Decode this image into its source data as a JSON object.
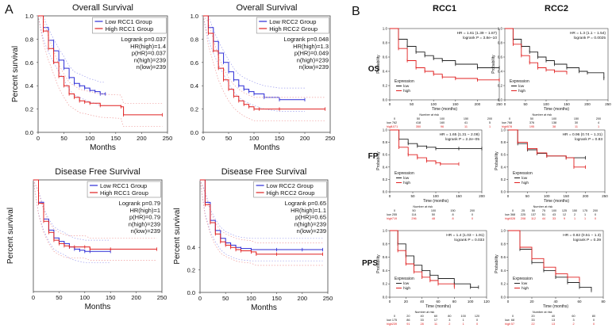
{
  "panel_labels": [
    "A",
    "B"
  ],
  "colors": {
    "low": "#2b2bd6",
    "high": "#e02020",
    "km_low": "#222222",
    "km_high": "#e02020",
    "ci_low": "#9d9dee",
    "ci_high": "#ef9d9d"
  },
  "chart_data": [
    {
      "type": "line",
      "panel": "A",
      "title": "Overall Survival",
      "xlabel": "Months",
      "ylabel": "Percent survival",
      "xlim": [
        0,
        250
      ],
      "ylim": [
        0,
        1.0
      ],
      "xticks": [
        "0",
        "50",
        "100",
        "150",
        "200",
        "250"
      ],
      "yticks": [
        "0.0",
        "0.2",
        "0.4",
        "0.6",
        "0.8",
        "1.0"
      ],
      "legend": [
        "Low RCC1 Group",
        "High RCC1 Group"
      ],
      "stats": [
        "Logrank p=0.037",
        "HR(high)=1.4",
        "p(HR)=0.037",
        "n(high)=239",
        "n(low)=239"
      ],
      "series": [
        {
          "name": "Low RCC1 Group",
          "x": [
            0,
            10,
            20,
            30,
            40,
            50,
            60,
            70,
            80,
            90,
            100,
            110,
            120,
            130
          ],
          "y": [
            1.0,
            0.9,
            0.79,
            0.7,
            0.62,
            0.55,
            0.47,
            0.42,
            0.4,
            0.38,
            0.36,
            0.35,
            0.33,
            0.33
          ]
        },
        {
          "name": "High RCC1 Group",
          "x": [
            0,
            10,
            20,
            30,
            40,
            50,
            60,
            70,
            80,
            90,
            100,
            120,
            160,
            165,
            240
          ],
          "y": [
            1.0,
            0.87,
            0.72,
            0.6,
            0.48,
            0.4,
            0.33,
            0.3,
            0.27,
            0.26,
            0.25,
            0.23,
            0.22,
            0.15,
            0.15
          ]
        }
      ]
    },
    {
      "type": "line",
      "panel": "A",
      "title": "Overall Survival",
      "xlabel": "Months",
      "ylabel": "",
      "xlim": [
        0,
        250
      ],
      "ylim": [
        0,
        1.0
      ],
      "xticks": [
        "0",
        "50",
        "100",
        "150",
        "200",
        "250"
      ],
      "yticks": [
        "0.0",
        "0.2",
        "0.4",
        "0.6",
        "0.8",
        "1.0"
      ],
      "legend": [
        "Low RCC2 Group",
        "High RCC2 Group"
      ],
      "stats": [
        "Logrank p=0.048",
        "HR(high)=1.3",
        "p(HR)=0.049",
        "n(high)=239",
        "n(low)=239"
      ],
      "series": [
        {
          "name": "Low RCC2 Group",
          "x": [
            0,
            10,
            20,
            30,
            40,
            50,
            60,
            70,
            80,
            90,
            100,
            120,
            150,
            200
          ],
          "y": [
            1.0,
            0.9,
            0.78,
            0.68,
            0.6,
            0.52,
            0.45,
            0.4,
            0.37,
            0.35,
            0.33,
            0.3,
            0.28,
            0.28
          ]
        },
        {
          "name": "High RCC2 Group",
          "x": [
            0,
            10,
            20,
            30,
            40,
            50,
            60,
            70,
            80,
            90,
            100,
            110,
            150,
            240
          ],
          "y": [
            1.0,
            0.85,
            0.7,
            0.55,
            0.45,
            0.37,
            0.31,
            0.27,
            0.24,
            0.22,
            0.2,
            0.2,
            0.2,
            0.2
          ]
        }
      ]
    },
    {
      "type": "line",
      "panel": "A",
      "title": "Disease Free Survival",
      "xlabel": "Months",
      "ylabel": "Percent survival",
      "xlim": [
        0,
        250
      ],
      "ylim": [
        0,
        1.0
      ],
      "xticks": [
        "0",
        "50",
        "100",
        "150",
        "200",
        "250"
      ],
      "yticks": [],
      "legend": [
        "Low RCC1 Group",
        "High RCC1 Group"
      ],
      "stats": [
        "Logrank p=0.79",
        "HR(high)=1",
        "p(HR)=0.79",
        "n(high)=239",
        "n(low)=239"
      ],
      "series": [
        {
          "name": "Low RCC1 Group",
          "x": [
            0,
            10,
            20,
            30,
            40,
            50,
            60,
            70,
            80,
            90,
            100,
            110,
            150
          ],
          "y": [
            1.0,
            0.8,
            0.65,
            0.55,
            0.48,
            0.45,
            0.43,
            0.4,
            0.38,
            0.37,
            0.36,
            0.36,
            0.36
          ]
        },
        {
          "name": "High RCC1 Group",
          "x": [
            0,
            10,
            20,
            30,
            40,
            50,
            60,
            70,
            80,
            100,
            110,
            150,
            240
          ],
          "y": [
            1.0,
            0.79,
            0.63,
            0.53,
            0.46,
            0.43,
            0.41,
            0.4,
            0.4,
            0.4,
            0.38,
            0.38,
            0.38
          ]
        }
      ]
    },
    {
      "type": "line",
      "panel": "A",
      "title": "Disease Free Survival",
      "xlabel": "Months",
      "ylabel": "Percent survival",
      "xlim": [
        0,
        250
      ],
      "ylim": [
        0,
        1.0
      ],
      "xticks": [
        "0",
        "50",
        "100",
        "150",
        "200",
        "250"
      ],
      "yticks": [
        "0.0",
        "0.2",
        "0.4"
      ],
      "legend": [
        "Low RCC2 Group",
        "High RCC2 Group"
      ],
      "stats": [
        "Logrank p=0.65",
        "HR(high)=1.1",
        "p(HR)=0.65",
        "n(high)=239",
        "n(low)=239"
      ],
      "series": [
        {
          "name": "Low RCC2 Group",
          "x": [
            0,
            10,
            20,
            30,
            40,
            50,
            60,
            70,
            80,
            100,
            150,
            200,
            240
          ],
          "y": [
            1.0,
            0.8,
            0.64,
            0.55,
            0.48,
            0.44,
            0.42,
            0.4,
            0.39,
            0.38,
            0.38,
            0.38,
            0.38
          ]
        },
        {
          "name": "High RCC2 Group",
          "x": [
            0,
            10,
            20,
            30,
            40,
            50,
            60,
            70,
            80,
            100,
            110,
            150,
            240
          ],
          "y": [
            1.0,
            0.78,
            0.62,
            0.52,
            0.45,
            0.42,
            0.4,
            0.38,
            0.37,
            0.36,
            0.34,
            0.34,
            0.34
          ]
        }
      ]
    },
    {
      "type": "line",
      "panel": "B",
      "title": "RCC1",
      "row_label": "OS",
      "xlabel": "Time (months)",
      "ylabel": "Probability",
      "xlim": [
        0,
        250
      ],
      "ylim": [
        0,
        1.0
      ],
      "xticks": [
        "0",
        "50",
        "100",
        "150",
        "200",
        "250"
      ],
      "yticks": [
        "0.0",
        "0.2",
        "0.4",
        "0.6",
        "0.8",
        "1.0"
      ],
      "legend_title": "Expression",
      "legend": [
        "low",
        "high"
      ],
      "stats": [
        "HR = 1.61 (1.39 − 1.87)",
        "logrank P = 3.8e−10"
      ],
      "risk_table_title": "Number at risk",
      "risk_table": {
        "times": [
          "0",
          "50",
          "100",
          "150",
          "200"
        ],
        "low": [
          "762",
          "418",
          "160",
          "41",
          "5"
        ],
        "high": [
          "1071",
          "350",
          "96",
          "11",
          "1"
        ]
      },
      "series": [
        {
          "name": "low",
          "x": [
            0,
            20,
            40,
            60,
            80,
            100,
            120,
            150,
            200,
            250
          ],
          "y": [
            1.0,
            0.85,
            0.75,
            0.67,
            0.62,
            0.58,
            0.55,
            0.5,
            0.45,
            0.45
          ]
        },
        {
          "name": "high",
          "x": [
            0,
            20,
            40,
            60,
            80,
            100,
            120,
            150,
            200,
            250
          ],
          "y": [
            1.0,
            0.72,
            0.55,
            0.45,
            0.4,
            0.36,
            0.32,
            0.3,
            0.28,
            0.28
          ]
        }
      ]
    },
    {
      "type": "line",
      "panel": "B",
      "title": "RCC2",
      "row_label": "OS",
      "xlabel": "Time (months)",
      "ylabel": "Probability",
      "xlim": [
        0,
        250
      ],
      "ylim": [
        0,
        1.0
      ],
      "xticks": [
        "0",
        "50",
        "100",
        "150",
        "200",
        "250"
      ],
      "yticks": [
        "0.0",
        "0.2",
        "0.4",
        "0.6",
        "0.8",
        "1.0"
      ],
      "legend_title": "Expression",
      "legend": [
        "low",
        "high"
      ],
      "stats": [
        "HR = 1.3 (1.1 − 1.54)",
        "logrank P = 0.0025"
      ],
      "risk_table_title": "Number at risk",
      "risk_table": {
        "times": [
          "0",
          "50",
          "100",
          "150",
          "200"
        ],
        "low": [
          "768",
          "376",
          "138",
          "30",
          "4"
        ],
        "high": [
          "578",
          "195",
          "38",
          "11",
          "1"
        ]
      },
      "series": [
        {
          "name": "low",
          "x": [
            0,
            20,
            40,
            60,
            80,
            100,
            120,
            150,
            180,
            200,
            240
          ],
          "y": [
            1.0,
            0.85,
            0.75,
            0.67,
            0.6,
            0.55,
            0.5,
            0.45,
            0.4,
            0.38,
            0.3
          ]
        },
        {
          "name": "high",
          "x": [
            0,
            20,
            40,
            60,
            80,
            100,
            120,
            150
          ],
          "y": [
            1.0,
            0.78,
            0.62,
            0.52,
            0.45,
            0.42,
            0.4,
            0.38
          ]
        }
      ]
    },
    {
      "type": "line",
      "panel": "B",
      "title": "",
      "row_label": "FP",
      "xlabel": "Time (months)",
      "ylabel": "Probability",
      "xlim": [
        0,
        200
      ],
      "ylim": [
        0,
        1.0
      ],
      "xticks": [
        "0",
        "50",
        "100",
        "150",
        "200"
      ],
      "yticks": [
        "0.0",
        "0.2",
        "0.4",
        "0.6",
        "0.8",
        "1.0"
      ],
      "legend_title": "Expression",
      "legend": [
        "low",
        "high"
      ],
      "stats": [
        "HR = 1.65 (1.31 − 2.08)",
        "logrank P = 2.2e−05"
      ],
      "risk_table_title": "Number at risk",
      "risk_table": {
        "times": [
          "0",
          "50",
          "100",
          "150",
          "200"
        ],
        "low": [
          "255",
          "114",
          "50",
          "8",
          "0"
        ],
        "high": [
          "719",
          "296",
          "48",
          "8",
          "0"
        ]
      },
      "series": [
        {
          "name": "low",
          "x": [
            0,
            20,
            40,
            60,
            80,
            100,
            150,
            200
          ],
          "y": [
            1.0,
            0.85,
            0.78,
            0.74,
            0.72,
            0.7,
            0.7,
            0.7
          ]
        },
        {
          "name": "high",
          "x": [
            0,
            20,
            40,
            60,
            80,
            100,
            110,
            150
          ],
          "y": [
            1.0,
            0.72,
            0.6,
            0.55,
            0.5,
            0.47,
            0.45,
            0.45
          ]
        }
      ]
    },
    {
      "type": "line",
      "panel": "B",
      "title": "",
      "row_label": "FP",
      "xlabel": "Time (months)",
      "ylabel": "Probability",
      "xlim": [
        0,
        250
      ],
      "ylim": [
        0,
        1.0
      ],
      "xticks": [
        "0",
        "50",
        "100",
        "150",
        "200",
        "250"
      ],
      "yticks": [
        "0.0",
        "0.2",
        "0.4",
        "0.6",
        "0.8",
        "1.0"
      ],
      "legend_title": "Expression",
      "legend": [
        "low",
        "high"
      ],
      "stats": [
        "HR = 0.96 (0.74 − 1.31)",
        "logrank P = 0.83"
      ],
      "risk_table_title": "Number at risk",
      "risk_table": {
        "times": [
          "0",
          "25",
          "50",
          "75",
          "100",
          "125",
          "150",
          "175",
          "200"
        ],
        "low": [
          "368",
          "225",
          "137",
          "51",
          "43",
          "12",
          "2",
          "1",
          "0"
        ],
        "high": [
          "328",
          "208",
          "112",
          "44",
          "33",
          "9",
          "1",
          "1",
          "0"
        ]
      },
      "series": [
        {
          "name": "low",
          "x": [
            0,
            25,
            50,
            75,
            100,
            150,
            200
          ],
          "y": [
            1.0,
            0.78,
            0.68,
            0.62,
            0.58,
            0.55,
            0.55
          ]
        },
        {
          "name": "high",
          "x": [
            0,
            25,
            50,
            75,
            100,
            150,
            170,
            200
          ],
          "y": [
            1.0,
            0.8,
            0.7,
            0.63,
            0.58,
            0.55,
            0.4,
            0.4
          ]
        }
      ]
    },
    {
      "type": "line",
      "panel": "B",
      "title": "",
      "row_label": "PPS",
      "xlabel": "Time (months)",
      "ylabel": "Probability",
      "xlim": [
        0,
        120
      ],
      "ylim": [
        0,
        1.0
      ],
      "xticks": [
        "0",
        "20",
        "40",
        "60",
        "80",
        "100",
        "120"
      ],
      "yticks": [
        "0.0",
        "0.2",
        "0.4",
        "0.6",
        "0.8",
        "1.0"
      ],
      "legend_title": "Expression",
      "legend": [
        "low",
        "high"
      ],
      "stats": [
        "HR = 1.4 (1.03 − 1.91)",
        "logrank P = 0.033"
      ],
      "risk_table_title": "Number at risk",
      "risk_table": {
        "times": [
          "0",
          "20",
          "40",
          "60",
          "80",
          "100",
          "120"
        ],
        "low": [
          "175",
          "86",
          "33",
          "17",
          "3",
          "1",
          "0"
        ],
        "high": [
          "239",
          "91",
          "28",
          "11",
          "2",
          "1",
          "0"
        ]
      },
      "series": [
        {
          "name": "low",
          "x": [
            0,
            10,
            20,
            30,
            40,
            50,
            60,
            80,
            100,
            110
          ],
          "y": [
            1.0,
            0.8,
            0.62,
            0.48,
            0.4,
            0.33,
            0.28,
            0.2,
            0.15,
            0.15
          ]
        },
        {
          "name": "high",
          "x": [
            0,
            10,
            20,
            30,
            40,
            50,
            60,
            80
          ],
          "y": [
            1.0,
            0.7,
            0.5,
            0.38,
            0.3,
            0.25,
            0.2,
            0.15
          ]
        }
      ]
    },
    {
      "type": "line",
      "panel": "B",
      "title": "",
      "row_label": "",
      "xlabel": "Time (months)",
      "ylabel": "Probability",
      "xlim": [
        0,
        80
      ],
      "ylim": [
        0,
        1.0
      ],
      "xticks": [
        "0",
        "20",
        "40",
        "60",
        "80"
      ],
      "yticks": [
        "0.0",
        "0.2",
        "0.4",
        "0.6",
        "0.8",
        "1.0"
      ],
      "legend_title": "Expression",
      "legend": [
        "low",
        "high"
      ],
      "stats": [
        "HR = 0.82 (0.51 − 1.3)",
        "logrank P = 0.39"
      ],
      "risk_table_title": "Number at risk",
      "risk_table": {
        "times": [
          "0",
          "20",
          "40",
          "60",
          "80"
        ],
        "low": [
          "68",
          "33",
          "13",
          "3",
          "0"
        ],
        "high": [
          "57",
          "22",
          "13",
          "2",
          "0"
        ]
      },
      "series": [
        {
          "name": "low",
          "x": [
            0,
            10,
            20,
            30,
            40,
            50,
            60,
            70
          ],
          "y": [
            1.0,
            0.72,
            0.52,
            0.4,
            0.3,
            0.22,
            0.15,
            0.1
          ]
        },
        {
          "name": "high",
          "x": [
            0,
            10,
            20,
            30,
            40,
            50,
            60
          ],
          "y": [
            1.0,
            0.75,
            0.58,
            0.45,
            0.35,
            0.3,
            0.25
          ]
        }
      ]
    }
  ]
}
